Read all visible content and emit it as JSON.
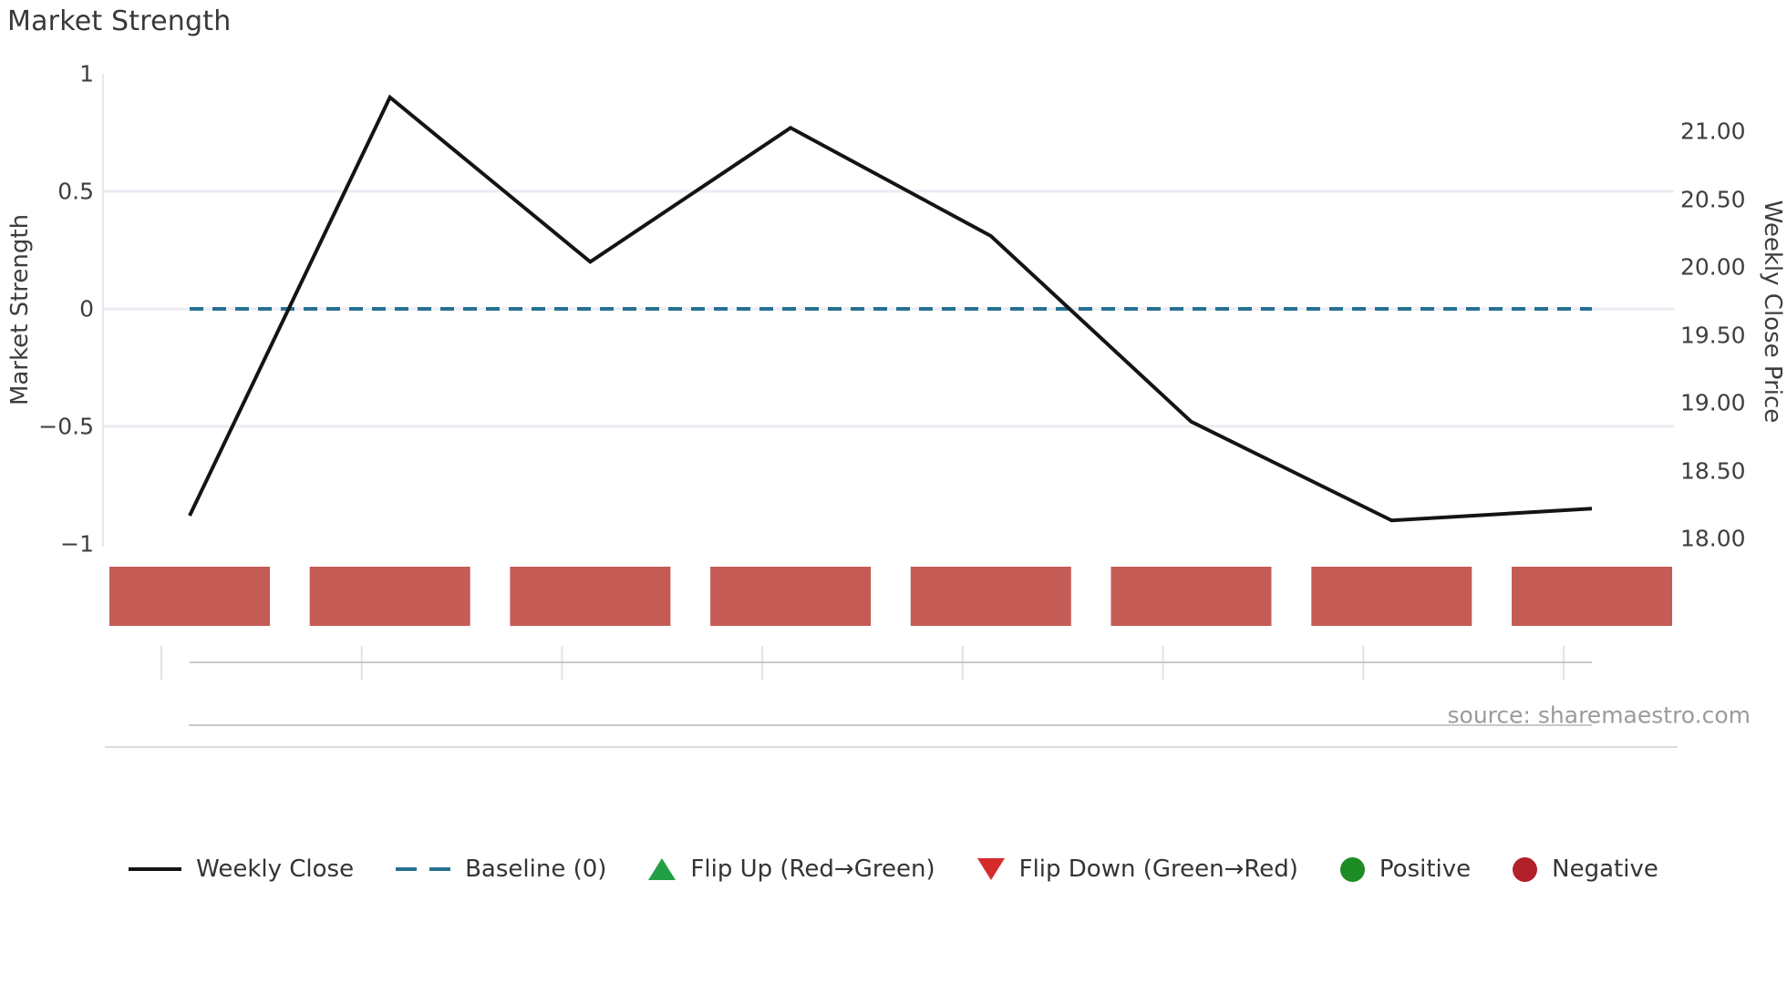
{
  "title": "Market Strength",
  "source": "source: sharemaestro.com",
  "left_axis": {
    "title": "Market Strength",
    "tick_labels": [
      "1",
      "0.5",
      "0",
      "−0.5",
      "−1"
    ],
    "tick_values": [
      1,
      0.5,
      0,
      -0.5,
      -1
    ],
    "range": [
      -1,
      1
    ]
  },
  "right_axis": {
    "title": "Weekly Close Price",
    "tick_labels": [
      "21.00",
      "20.50",
      "20.00",
      "19.50",
      "19.00",
      "18.50",
      "18.00"
    ],
    "tick_values": [
      21.0,
      20.5,
      20.0,
      19.5,
      19.0,
      18.5,
      18.0
    ]
  },
  "legend": {
    "position": "bottom",
    "items": [
      {
        "label": "Weekly Close",
        "marker": "line-swatch",
        "color": "#141414"
      },
      {
        "label": "Baseline (0)",
        "marker": "dashed-swatch",
        "color": "#277192"
      },
      {
        "label": "Flip Up (Red→Green)",
        "marker": "triangle-up",
        "color": "#23a047"
      },
      {
        "label": "Flip Down (Green→Red)",
        "marker": "triangle-down",
        "color": "#d62b2b"
      },
      {
        "label": "Positive",
        "marker": "dot",
        "color": "#1e8c24"
      },
      {
        "label": "Negative",
        "marker": "dot",
        "color": "#b2212a"
      }
    ]
  },
  "chart_data": {
    "type": "line",
    "title": "Market Strength",
    "x": [
      1,
      2,
      3,
      4,
      5,
      6,
      7,
      8
    ],
    "x_labels_visible": false,
    "series": [
      {
        "name": "Weekly Close (market strength, left axis)",
        "axis": "left",
        "values": [
          -0.88,
          0.9,
          0.2,
          0.77,
          0.31,
          -0.48,
          -0.9,
          -0.85
        ]
      },
      {
        "name": "Weekly Close Price (right axis, approx read)",
        "axis": "right",
        "values": [
          18.17,
          21.25,
          20.04,
          21.02,
          20.23,
          18.86,
          18.13,
          18.22
        ]
      }
    ],
    "baseline": {
      "label": "Baseline (0)",
      "value": 0,
      "style": "dashed",
      "color": "#277192"
    },
    "state_bars": {
      "states": [
        "negative",
        "negative",
        "negative",
        "negative",
        "negative",
        "negative",
        "negative",
        "negative"
      ],
      "negative_color": "#c45c55"
    },
    "left_ylim": [
      -1,
      1
    ],
    "left_ticks": [
      1,
      0.5,
      0,
      -0.5,
      -1
    ],
    "right_ticks": [
      21.0,
      20.5,
      20.0,
      19.5,
      19.0,
      18.5,
      18.0
    ],
    "grid": "horizontal gridlines at left-axis ticks 0.5, 0, −0.5 only",
    "legend_position": "bottom center"
  },
  "colors": {
    "line": "#141414",
    "baseline_dash": "#277192",
    "bar_negative": "#c45c55",
    "gridline": "#eceaf2",
    "axis_line": "#e7e7ee",
    "mini_axis_line": "#c9c9c9",
    "mini_axis_tick": "#e2e2e8",
    "bottom_rule": "#dcdcdc",
    "text": "#3a3a3a",
    "source_text": "#9b9b9b"
  }
}
